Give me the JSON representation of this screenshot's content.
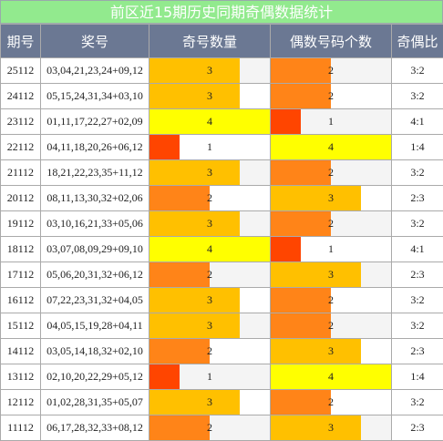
{
  "title": "前区近15期历史同期奇偶数据统计",
  "table": {
    "header": [
      "期号",
      "奖号",
      "奇号数量",
      "偶数号码个数",
      "奇偶比"
    ],
    "bar_colors": [
      "#ff4500",
      "#ff8418",
      "#ffc000",
      "#ffff00"
    ],
    "rows": [
      [
        "25112",
        "03,04,21,23,24+09,12",
        3,
        2,
        "3:2"
      ],
      [
        "24112",
        "05,15,24,31,34+03,10",
        3,
        2,
        "3:2"
      ],
      [
        "23112",
        "01,11,17,22,27+02,09",
        4,
        1,
        "4:1"
      ],
      [
        "22112",
        "04,11,18,20,26+06,12",
        1,
        4,
        "1:4"
      ],
      [
        "21112",
        "18,21,22,23,35+11,12",
        3,
        2,
        "3:2"
      ],
      [
        "20112",
        "08,11,13,30,32+02,06",
        2,
        3,
        "2:3"
      ],
      [
        "19112",
        "03,10,16,21,33+05,06",
        3,
        2,
        "3:2"
      ],
      [
        "18112",
        "03,07,08,09,29+09,10",
        4,
        1,
        "4:1"
      ],
      [
        "17112",
        "05,06,20,31,32+06,12",
        2,
        3,
        "2:3"
      ],
      [
        "16112",
        "07,22,23,31,32+04,05",
        3,
        2,
        "3:2"
      ],
      [
        "15112",
        "04,05,15,19,28+04,11",
        3,
        2,
        "3:2"
      ],
      [
        "14112",
        "03,05,14,18,32+02,10",
        2,
        3,
        "2:3"
      ],
      [
        "13112",
        "02,10,20,22,29+05,12",
        1,
        4,
        "1:4"
      ],
      [
        "12112",
        "01,02,28,31,35+05,07",
        3,
        2,
        "3:2"
      ],
      [
        "11112",
        "06,17,28,32,33+08,12",
        2,
        3,
        "2:3"
      ]
    ]
  }
}
